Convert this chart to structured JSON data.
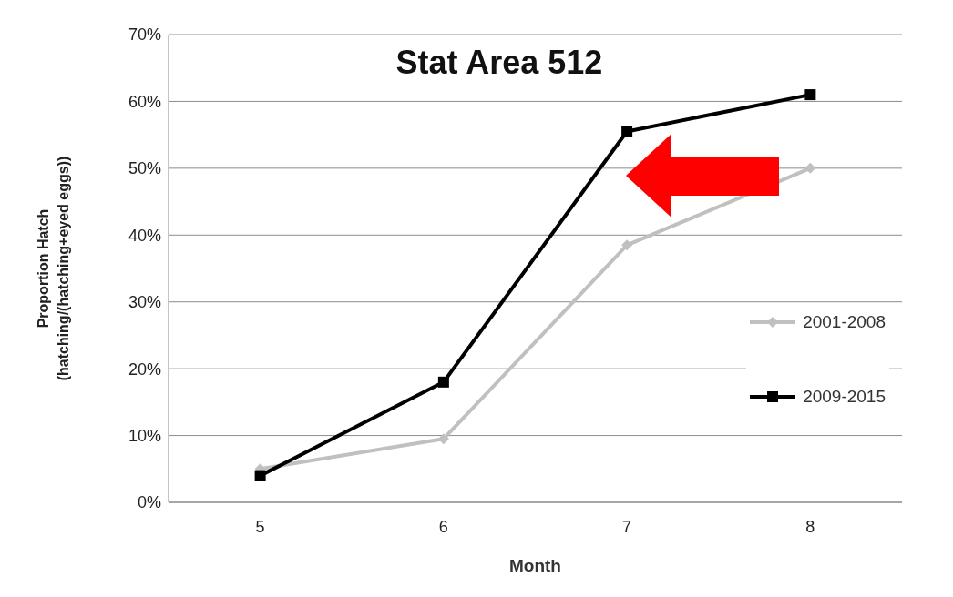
{
  "chart_data": {
    "type": "line",
    "title": "Stat Area 512",
    "xlabel": "Month",
    "ylabel": "Proportion Hatch\n(hatching/(hatching+eyed  eggs))",
    "categories": [
      "5",
      "6",
      "7",
      "8"
    ],
    "series": [
      {
        "name": "2001-2008",
        "color": "#c0c0c0",
        "marker": "diamond",
        "values": [
          5,
          9.5,
          38.5,
          50
        ]
      },
      {
        "name": "2009-2015",
        "color": "#000000",
        "marker": "square",
        "values": [
          4,
          18,
          55.5,
          61
        ]
      }
    ],
    "ylim": [
      0,
      70
    ],
    "yticks": [
      {
        "value": 0,
        "label": "0%"
      },
      {
        "value": 10,
        "label": "10%"
      },
      {
        "value": 20,
        "label": "20%"
      },
      {
        "value": 30,
        "label": "30%"
      },
      {
        "value": 40,
        "label": "40%"
      },
      {
        "value": 50,
        "label": "50%"
      },
      {
        "value": 60,
        "label": "60%"
      },
      {
        "value": 70,
        "label": "70%"
      }
    ],
    "grid": "y",
    "legend": "right",
    "line_style": "solid"
  }
}
